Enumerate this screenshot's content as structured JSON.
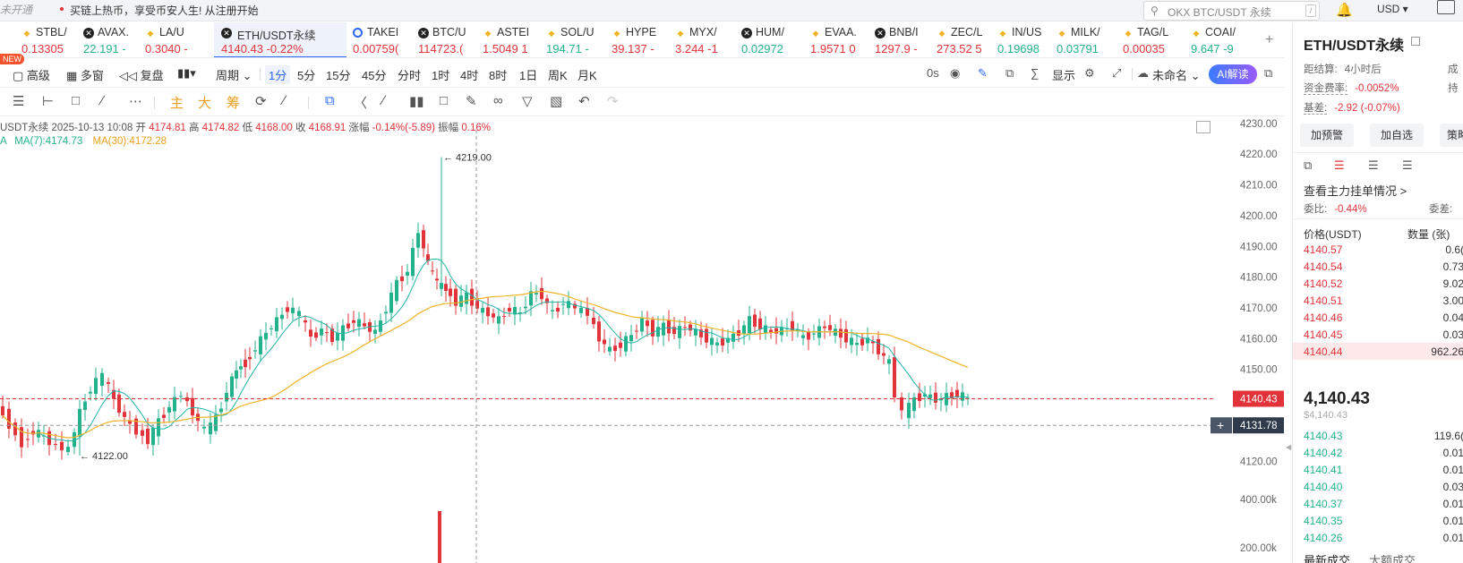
{
  "topbar": {
    "status": "未开通",
    "promo": "买链上热币，享受币安人生! 从注册开始",
    "search_placeholder": "OKX BTC/USDT 永续",
    "search_shortcut": "/",
    "currency": "USD ▾"
  },
  "tickers": [
    {
      "name": "",
      "price": "",
      "color": "#23b28c",
      "icon": "none"
    },
    {
      "name": "STBL/",
      "price": "0.13305",
      "color": "#e2333a",
      "icon": "diamond-icon"
    },
    {
      "name": "AVAX.",
      "price": "22.191 -",
      "color": "#23b28c",
      "icon": "x-circle-icon"
    },
    {
      "name": "LA/U",
      "price": "0.3040 -",
      "color": "#e2333a",
      "icon": "diamond-icon"
    },
    {
      "name": "ETH/USDT永续",
      "price": "4140.43  -0.22%",
      "color": "#e2333a",
      "icon": "x-circle-icon",
      "active": true
    },
    {
      "name": "TAKEI",
      "price": "0.00759(",
      "color": "#e2333a",
      "icon": "spinner-icon"
    },
    {
      "name": "BTC/U",
      "price": "114723.(",
      "color": "#e2333a",
      "icon": "x-circle-icon"
    },
    {
      "name": "ASTEI",
      "price": "1.5049  1",
      "color": "#e2333a",
      "icon": "diamond-icon"
    },
    {
      "name": "SOL/U",
      "price": "194.71  -",
      "color": "#23b28c",
      "icon": "diamond-icon"
    },
    {
      "name": "HYPE",
      "price": "39.137  -",
      "color": "#e2333a",
      "icon": "diamond-icon"
    },
    {
      "name": "MYX/",
      "price": "3.244  -1",
      "color": "#e2333a",
      "icon": "diamond-icon"
    },
    {
      "name": "HUM/",
      "price": "0.02972",
      "color": "#23b28c",
      "icon": "x-circle-icon"
    },
    {
      "name": "EVAA.",
      "price": "1.9571  0",
      "color": "#e2333a",
      "icon": "diamond-icon"
    },
    {
      "name": "BNB/I",
      "price": "1297.9  -",
      "color": "#e2333a",
      "icon": "x-circle-icon"
    },
    {
      "name": "ZEC/L",
      "price": "273.52  5",
      "color": "#e2333a",
      "icon": "diamond-icon"
    },
    {
      "name": "IN/US",
      "price": "0.19698",
      "color": "#23b28c",
      "icon": "diamond-icon"
    },
    {
      "name": "MILK/",
      "price": "0.03791",
      "color": "#23b28c",
      "icon": "diamond-icon"
    },
    {
      "name": "TAG/L",
      "price": "0.00035",
      "color": "#e2333a",
      "icon": "diamond-icon"
    },
    {
      "name": "COAI/",
      "price": "9.647  -9",
      "color": "#23b28c",
      "icon": "diamond-icon"
    }
  ],
  "new_badge": "NEW",
  "toolbar": {
    "advanced": "高级",
    "multi": "多窗",
    "replay": "复盘",
    "period": "周期",
    "intervals": [
      "1分",
      "5分",
      "15分",
      "45分",
      "分时",
      "1时",
      "4时",
      "8时",
      "1日",
      "周K",
      "月K"
    ],
    "selected_interval": "1分",
    "countdown": "0s",
    "display": "显示",
    "unnamed": "未命名",
    "ai": "AI解读"
  },
  "drawtools": {
    "main": "主",
    "big": "大",
    "chips": "筹"
  },
  "chart_info": {
    "symbol_time": "USDT永续  2025-10-13 10:08",
    "open_label": "开",
    "open": "4174.81",
    "high_label": "高",
    "high": "4174.82",
    "low_label": "低",
    "low": "4168.00",
    "close_label": "收",
    "close": "4168.91",
    "change_label": "涨幅",
    "change": "-0.14%(-5.89)",
    "amp_label": "振幅",
    "amp": "0.16%",
    "ma_prefix": "A",
    "ma7": "MA(7):4174.73",
    "ma30": "MA(30):4172.28"
  },
  "chart_data": {
    "type": "candlestick",
    "y_ticks": [
      "4230.00",
      "4220.00",
      "4210.00",
      "4200.00",
      "4190.00",
      "4180.00",
      "4170.00",
      "4160.00",
      "4150.00",
      "4140.43",
      "4131.78",
      "4120.00"
    ],
    "ylim": [
      4117,
      4232
    ],
    "volume_ticks": [
      "400.00k",
      "200.00k"
    ],
    "high_marker": "4219.00",
    "low_marker": "4122.00",
    "current_price": "4140.43",
    "crosshair_price": "4131.78",
    "colors": {
      "up": "#23b28c",
      "down": "#e2333a",
      "ma7": "#23b5a8",
      "ma30": "#f0b429"
    }
  },
  "panel": {
    "title": "ETH/USDT永续",
    "settle_label": "距结算:",
    "settle_value": "4小时后",
    "settle_right": "成",
    "funding_label": "资金费率:",
    "funding_value": "-0.0052%",
    "funding_right": "持",
    "basis_label": "基差:",
    "basis_value": "-2.92 (-0.07%)",
    "buttons": [
      "加预警",
      "加自选",
      "策略"
    ],
    "orderbook_link": "查看主力挂单情况 >",
    "ratio_label": "委比:",
    "ratio_value": "-0.44%",
    "ratio_right": "委差:",
    "col_price": "价格(USDT)",
    "col_qty": "数量 (张)",
    "asks": [
      {
        "price": "4140.57",
        "qty": "0.6("
      },
      {
        "price": "4140.54",
        "qty": "0.73"
      },
      {
        "price": "4140.52",
        "qty": "9.02"
      },
      {
        "price": "4140.51",
        "qty": "3.00"
      },
      {
        "price": "4140.46",
        "qty": "0.04"
      },
      {
        "price": "4140.45",
        "qty": "0.03"
      },
      {
        "price": "4140.44",
        "qty": "962.26"
      }
    ],
    "last_price": "4,140.43",
    "last_usd": "$4,140.43",
    "bids": [
      {
        "price": "4140.43",
        "qty": "119.6("
      },
      {
        "price": "4140.42",
        "qty": "0.01"
      },
      {
        "price": "4140.41",
        "qty": "0.01"
      },
      {
        "price": "4140.40",
        "qty": "0.03"
      },
      {
        "price": "4140.37",
        "qty": "0.01"
      },
      {
        "price": "4140.35",
        "qty": "0.01"
      },
      {
        "price": "4140.26",
        "qty": "0.01"
      }
    ],
    "tab_latest": "最新成交",
    "tab_large": "大额成交"
  }
}
